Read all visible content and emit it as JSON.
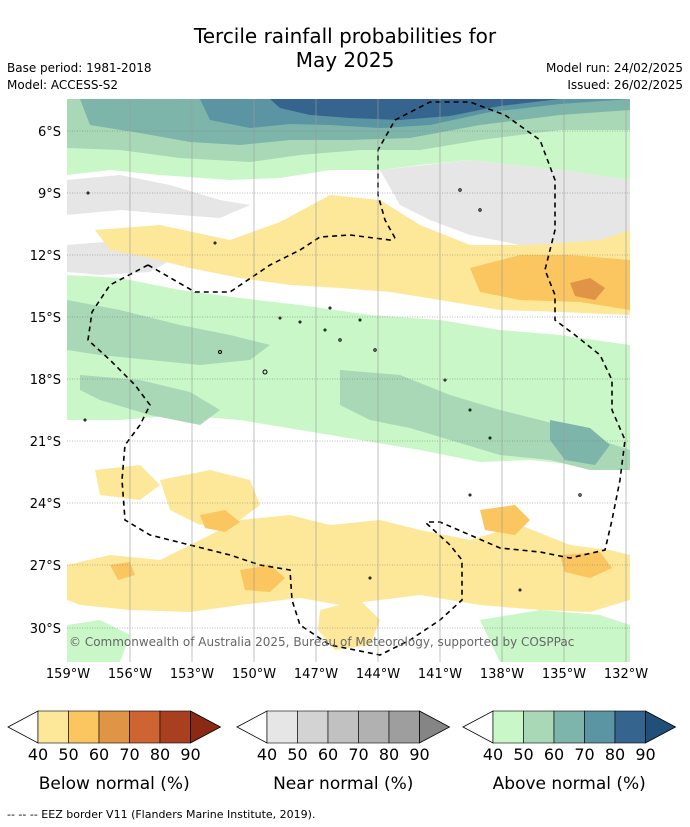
{
  "title_line1": "Tercile rainfall probabilities for",
  "title_line2": "May 2025",
  "base_period": "Base period: 1981-2018",
  "model": "Model: ACCESS-S2",
  "model_run": "Model run: 24/02/2025",
  "issued": "Issued: 26/02/2025",
  "copyright": "© Commonwealth of Australia 2025, Bureau of Meteorology, supported by COSPPac",
  "lat_labels": [
    "6°S",
    "9°S",
    "12°S",
    "15°S",
    "18°S",
    "21°S",
    "24°S",
    "27°S",
    "30°S"
  ],
  "lon_labels": [
    "159°W",
    "156°W",
    "153°W",
    "150°W",
    "147°W",
    "144°W",
    "141°W",
    "138°W",
    "135°W",
    "132°W"
  ],
  "colorbars": [
    {
      "label": "Below normal (%)",
      "ticks": [
        "40",
        "50",
        "60",
        "70",
        "80",
        "90"
      ],
      "colors": [
        "#fde89a",
        "#fbc55f",
        "#e09445",
        "#cd6432",
        "#a8401f",
        "#8a2a14"
      ]
    },
    {
      "label": "Near normal (%)",
      "ticks": [
        "40",
        "50",
        "60",
        "70",
        "80",
        "90"
      ],
      "colors": [
        "#e6e6e6",
        "#d3d3d3",
        "#c1c1c1",
        "#b1b1b1",
        "#9e9e9e",
        "#858585"
      ]
    },
    {
      "label": "Above normal (%)",
      "ticks": [
        "40",
        "50",
        "60",
        "70",
        "80",
        "90"
      ],
      "colors": [
        "#c9f7c8",
        "#a8d8b6",
        "#7db5aa",
        "#5b94a2",
        "#35658e",
        "#204f7a"
      ]
    }
  ],
  "eez_legend": "-- -- -- EEZ border V11 (Flanders Marine Institute, 2019)."
}
